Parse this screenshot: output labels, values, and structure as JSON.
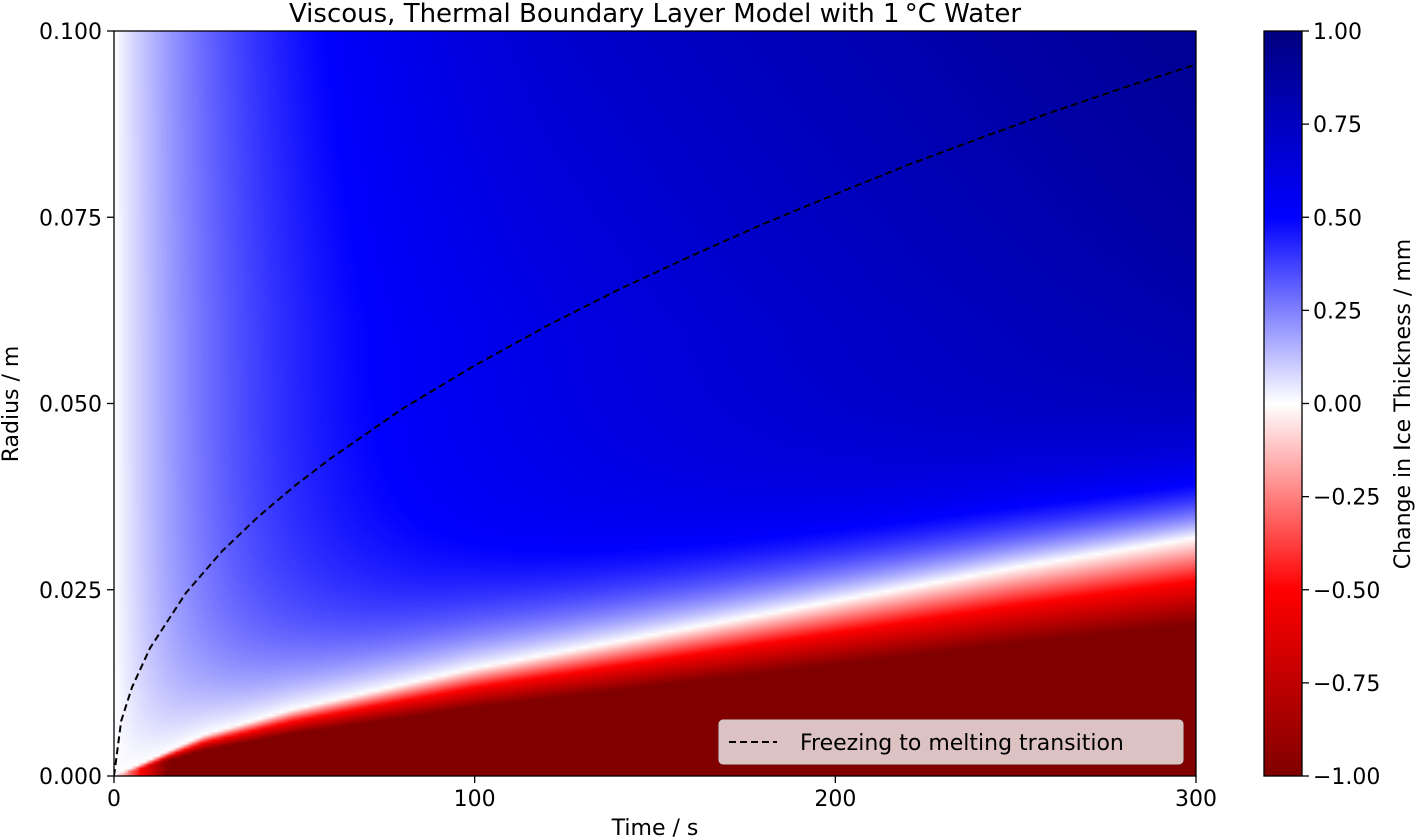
{
  "chart_data": {
    "type": "heatmap",
    "title": "Viscous, Thermal Boundary Layer Model with 1$^\\circ$C Water",
    "title_display": "Viscous, Thermal Boundary Layer Model with 1 °C Water",
    "xlabel": "Time / s",
    "ylabel": "Radius / m",
    "colorbar_label": "Change in Ice Thickness / mm",
    "xlim": [
      0,
      300
    ],
    "ylim": [
      0.0,
      0.1
    ],
    "clim": [
      -1.0,
      1.0
    ],
    "x_ticks": [
      0,
      100,
      200,
      300
    ],
    "x_tick_labels": [
      "0",
      "100",
      "200",
      "300"
    ],
    "y_ticks": [
      0.0,
      0.025,
      0.05,
      0.075,
      0.1
    ],
    "y_tick_labels": [
      "0.000",
      "0.025",
      "0.050",
      "0.075",
      "0.100"
    ],
    "colorbar_ticks": [
      -1.0,
      -0.75,
      -0.5,
      -0.25,
      0.0,
      0.25,
      0.5,
      0.75,
      1.0
    ],
    "colorbar_tick_labels": [
      "−1.00",
      "−0.75",
      "−0.50",
      "−0.25",
      "0.00",
      "0.25",
      "0.50",
      "0.75",
      "1.00"
    ],
    "colormap": "seismic_r",
    "colormap_stops": [
      "#800000",
      "#ff0000",
      "#ffffff",
      "#0000ff",
      "#000080"
    ],
    "zero_contour_points": [
      [
        0,
        0.0
      ],
      [
        25,
        0.0055
      ],
      [
        50,
        0.009
      ],
      [
        100,
        0.0145
      ],
      [
        150,
        0.019
      ],
      [
        200,
        0.0235
      ],
      [
        250,
        0.028
      ],
      [
        300,
        0.032
      ]
    ],
    "grid": false,
    "legend": {
      "placement": "lower right",
      "entries": [
        {
          "label": "Freezing to melting transition",
          "style": "dashed",
          "color": "#000000"
        }
      ]
    },
    "series": [
      {
        "name": "Freezing to melting transition",
        "style": "dashed",
        "x": [
          0,
          2,
          5,
          10,
          20,
          30,
          40,
          50,
          60,
          80,
          100,
          120,
          140,
          160,
          180,
          200,
          220,
          240,
          260,
          280,
          300
        ],
        "y": [
          0.0,
          0.0074,
          0.0119,
          0.0172,
          0.0246,
          0.0302,
          0.0348,
          0.0389,
          0.0426,
          0.0493,
          0.0551,
          0.0604,
          0.0653,
          0.0698,
          0.0741,
          0.0781,
          0.082,
          0.0856,
          0.0891,
          0.0924,
          0.0955
        ]
      }
    ]
  }
}
